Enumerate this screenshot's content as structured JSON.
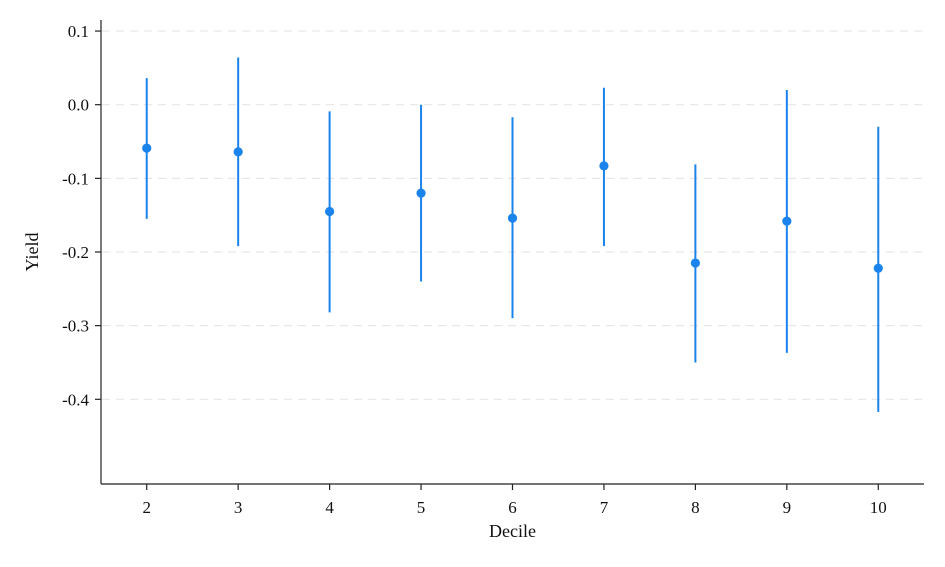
{
  "chart_data": {
    "type": "scatter",
    "subtype": "point-estimates-with-confidence-intervals",
    "title": "",
    "xlabel": "Decile",
    "ylabel": "Yield",
    "x": [
      2,
      3,
      4,
      5,
      6,
      7,
      8,
      9,
      10
    ],
    "x_tick_labels": [
      "2",
      "3",
      "4",
      "5",
      "6",
      "7",
      "8",
      "9",
      "10"
    ],
    "series": [
      {
        "estimate": [
          -0.059,
          -0.064,
          -0.145,
          -0.12,
          -0.154,
          -0.083,
          -0.215,
          -0.158,
          -0.222
        ],
        "ci_lower": [
          -0.155,
          -0.192,
          -0.282,
          -0.24,
          -0.29,
          -0.192,
          -0.35,
          -0.337,
          -0.417
        ],
        "ci_upper": [
          0.036,
          0.064,
          -0.009,
          0.0,
          -0.017,
          0.023,
          -0.081,
          0.02,
          -0.03
        ]
      }
    ],
    "y_ticks": [
      0.1,
      0.0,
      -0.1,
      -0.2,
      -0.3,
      -0.4
    ],
    "y_tick_labels": [
      "0.1",
      "0.0",
      "-0.1",
      "-0.2",
      "-0.3",
      "-0.4"
    ],
    "xlim": [
      1.5,
      10.5
    ],
    "ylim": [
      -0.515,
      0.115
    ],
    "grid": true,
    "legend": "none",
    "colors": {
      "marker": "#1a83ec",
      "grid": "#e6e6e6",
      "axis": "#222222"
    }
  }
}
